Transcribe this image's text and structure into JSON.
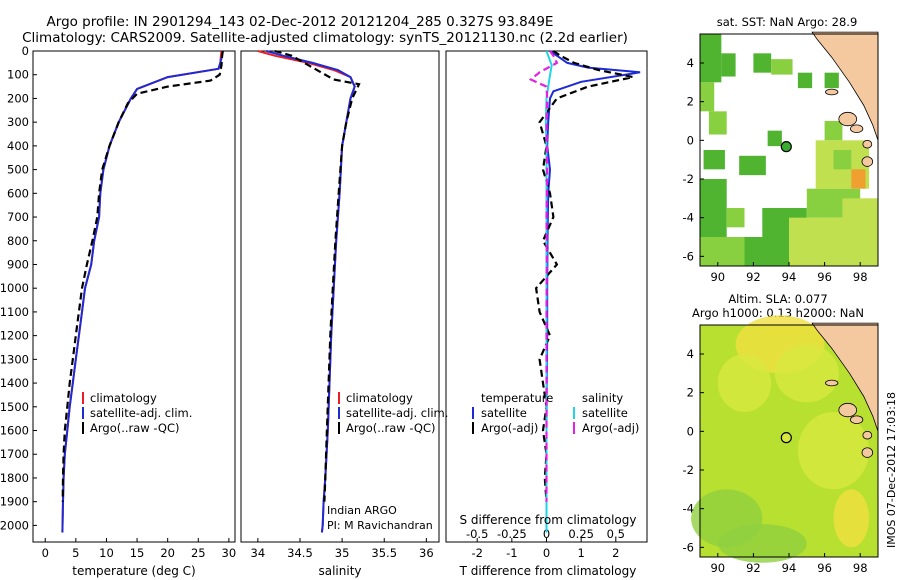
{
  "header": {
    "line1": "Argo profile: IN 2901294_143 02-Dec-2012 20121204_285 0.327S 93.849E",
    "line2": "Climatology: CARS2009. Satellite-adjusted climatology: synTS_20121130.nc (2.2d earlier)"
  },
  "colors": {
    "climatology": "#ee1c24",
    "satellite": "#1d2bd6",
    "argo": "#000000",
    "sal_satellite": "#1fd6e6",
    "sal_argo": "#e61ee6",
    "land": "#f5c9a0",
    "ocean_missing": "#ffffff"
  },
  "depth_axis": {
    "ticks": [
      0,
      100,
      200,
      300,
      400,
      500,
      600,
      700,
      800,
      900,
      1000,
      1100,
      1200,
      1300,
      1400,
      1500,
      1600,
      1700,
      1800,
      1900,
      2000
    ],
    "range": [
      0,
      2070
    ]
  },
  "legend_labels": {
    "climatology": "climatology",
    "satellite_adj": "satellite-adj. clim.",
    "argo": "Argo(..raw -QC)"
  },
  "chart_data": [
    {
      "type": "line",
      "title": "",
      "xlabel": "temperature (deg C)",
      "xlim": [
        -2,
        31
      ],
      "xticks": [
        0,
        5,
        10,
        15,
        20,
        25,
        30
      ],
      "ylim": [
        0,
        2070
      ],
      "series": [
        {
          "name": "climatology",
          "color": "#ee1c24",
          "dash": "none",
          "x": [
            28.8,
            28.7,
            28.6,
            28.3,
            20,
            15,
            14,
            12,
            10.5,
            9.5,
            9,
            8.8,
            8,
            7.5,
            6.5,
            6,
            5.5,
            5,
            4.5,
            4,
            3.6,
            3.2,
            3,
            2.9,
            2.8
          ],
          "y": [
            0,
            20,
            50,
            75,
            110,
            160,
            200,
            300,
            400,
            500,
            600,
            700,
            800,
            900,
            1000,
            1100,
            1200,
            1300,
            1400,
            1500,
            1600,
            1700,
            1800,
            1900,
            2030
          ]
        },
        {
          "name": "satellite-adj. clim.",
          "color": "#1d2bd6",
          "dash": "none",
          "x": [
            29,
            28.9,
            28.6,
            28.3,
            20,
            15,
            14,
            12,
            10.5,
            9.5,
            9,
            8.8,
            8,
            7.5,
            6.5,
            6,
            5.5,
            5,
            4.5,
            4,
            3.6,
            3.2,
            3,
            2.9,
            2.8
          ],
          "y": [
            0,
            20,
            50,
            75,
            110,
            160,
            200,
            300,
            400,
            500,
            600,
            700,
            800,
            900,
            1000,
            1100,
            1200,
            1300,
            1400,
            1500,
            1600,
            1700,
            1800,
            1900,
            2030
          ]
        },
        {
          "name": "Argo(..raw -QC)",
          "color": "#000000",
          "dash": "7,4",
          "x": [
            29,
            28.9,
            28.8,
            28.5,
            27,
            20,
            15,
            13.5,
            12,
            10.5,
            9.3,
            8.8,
            8.5,
            7.7,
            6.8,
            6,
            5.5,
            5,
            4.5,
            4,
            3.6,
            3.2,
            3,
            2.9,
            2.85
          ],
          "y": [
            0,
            20,
            60,
            100,
            125,
            150,
            180,
            220,
            300,
            400,
            500,
            600,
            700,
            800,
            900,
            1000,
            1100,
            1200,
            1300,
            1400,
            1500,
            1600,
            1700,
            1800,
            1900
          ]
        }
      ],
      "legend": {
        "location": "lower-center",
        "entries": [
          "climatology",
          "satellite-adj. clim.",
          "Argo(..raw -QC)"
        ]
      }
    },
    {
      "type": "line",
      "title": "",
      "xlabel": "salinity",
      "xlim": [
        33.8,
        36.15
      ],
      "xticks": [
        34,
        34.5,
        35,
        35.5,
        36
      ],
      "ylim": [
        0,
        2070
      ],
      "annotation": [
        "Indian ARGO",
        "PI: M Ravichandran"
      ],
      "series": [
        {
          "name": "climatology",
          "color": "#ee1c24",
          "dash": "none",
          "x": [
            34.0,
            34.2,
            34.6,
            34.9,
            35.1,
            35.15,
            35.1,
            35.05,
            35.0,
            34.97,
            34.93,
            34.9,
            34.87,
            34.85,
            34.83,
            34.8,
            34.78,
            34.77,
            34.76
          ],
          "y": [
            0,
            20,
            50,
            80,
            110,
            150,
            200,
            300,
            400,
            600,
            800,
            1000,
            1200,
            1400,
            1600,
            1800,
            1900,
            2000,
            2030
          ]
        },
        {
          "name": "satellite-adj. clim.",
          "color": "#1d2bd6",
          "dash": "none",
          "x": [
            34.1,
            34.3,
            34.65,
            34.95,
            35.1,
            35.15,
            35.1,
            35.05,
            35.0,
            34.97,
            34.93,
            34.9,
            34.87,
            34.85,
            34.83,
            34.8,
            34.78,
            34.77,
            34.76
          ],
          "y": [
            0,
            20,
            50,
            80,
            110,
            150,
            200,
            300,
            400,
            600,
            800,
            1000,
            1200,
            1400,
            1600,
            1800,
            1900,
            2000,
            2030
          ]
        },
        {
          "name": "Argo(..raw -QC)",
          "color": "#000000",
          "dash": "7,4",
          "x": [
            34.2,
            34.4,
            34.6,
            34.9,
            35.2,
            35.12,
            35.05,
            35.0,
            34.96,
            34.92,
            34.89,
            34.86,
            34.84,
            34.82,
            34.8,
            34.79
          ],
          "y": [
            0,
            20,
            60,
            120,
            140,
            200,
            300,
            400,
            600,
            800,
            1000,
            1200,
            1400,
            1600,
            1800,
            1900
          ]
        }
      ],
      "legend": {
        "location": "lower-center",
        "entries": [
          "climatology",
          "satellite-adj. clim.",
          "Argo(..raw -QC)"
        ]
      }
    },
    {
      "type": "line",
      "title": "",
      "xlabel": "T difference from climatology",
      "xlabel_top": "S difference from climatology",
      "xlim": [
        -2.9,
        2.9
      ],
      "xticks": [
        -2,
        -1,
        0,
        1,
        2
      ],
      "xticks_top": [
        -0.5,
        -0.25,
        0,
        0.25,
        0.5
      ],
      "xtick_labels_top": [
        "-0.5",
        "-0.25",
        "0",
        "0.25",
        "0.5"
      ],
      "ylim": [
        0,
        2070
      ],
      "series": [
        {
          "name": "temperature satellite",
          "color": "#1d2bd6",
          "dash": "none",
          "x": [
            0.1,
            0.3,
            0.6,
            1.2,
            2.7,
            1.0,
            0.2,
            0.1,
            0.05,
            0.02,
            0.1,
            0.05,
            0.03,
            0.02,
            0.02,
            0.01,
            0.0,
            0.0,
            0.0,
            0.0
          ],
          "y": [
            0,
            20,
            50,
            70,
            90,
            130,
            170,
            200,
            300,
            400,
            500,
            600,
            800,
            1000,
            1200,
            1400,
            1600,
            1800,
            1900,
            2030
          ]
        },
        {
          "name": "temperature Argo(-adj)",
          "color": "#000000",
          "dash": "7,4",
          "x": [
            0.2,
            0.4,
            0.8,
            1.5,
            2.5,
            1.2,
            0.3,
            -0.2,
            0.0,
            -0.1,
            0.1,
            0.2,
            -0.1,
            0.3,
            -0.3,
            -0.2,
            0.1,
            -0.2,
            -0.1,
            0.0,
            -0.1,
            0.0,
            -0.05,
            0.0
          ],
          "y": [
            0,
            20,
            50,
            80,
            110,
            150,
            200,
            300,
            400,
            500,
            600,
            700,
            800,
            900,
            1000,
            1100,
            1200,
            1300,
            1400,
            1500,
            1600,
            1700,
            1800,
            1900
          ]
        },
        {
          "name": "salinity satellite",
          "color": "#1fd6e6",
          "dash": "none",
          "x": [
            0.0,
            0.05,
            0.15,
            0.08,
            0.0,
            -0.02,
            0.0,
            0.0,
            0.0,
            0.0,
            0.0,
            0.0,
            0.0,
            0.0,
            0.0,
            0.0,
            0.0,
            0.0,
            0.0
          ],
          "y": [
            0,
            20,
            60,
            120,
            200,
            300,
            400,
            500,
            600,
            800,
            1000,
            1200,
            1400,
            1600,
            1700,
            1800,
            1900,
            2000,
            2030
          ]
        },
        {
          "name": "salinity Argo(-adj)",
          "color": "#e61ee6",
          "dash": "7,4",
          "x": [
            0.1,
            0.2,
            0.3,
            -0.2,
            -0.45,
            0.0,
            0.02,
            0.0,
            0.02,
            0.0,
            0.01,
            0.0,
            0.0,
            0.0,
            0.0,
            0.0
          ],
          "y": [
            0,
            20,
            50,
            90,
            120,
            150,
            200,
            300,
            500,
            700,
            900,
            1100,
            1300,
            1500,
            1700,
            1900
          ]
        }
      ],
      "legend_headers": [
        "temperature",
        "salinity"
      ],
      "legend_items": [
        "satellite",
        "Argo(-adj)",
        "satellite",
        "Argo(-adj)"
      ]
    }
  ],
  "maps": [
    {
      "title": "sat. SST: NaN Argo: 28.9",
      "xticks": [
        "90",
        "92",
        "94",
        "96",
        "98"
      ],
      "yticks": [
        "4",
        "2",
        "0",
        "-2",
        "-4",
        "-6"
      ],
      "marker": {
        "lon": 93.849,
        "lat": -0.327
      },
      "colors": {
        "high": "#50b430",
        "mid": "#88d040",
        "low": "#c0e050",
        "hot": "#f0a030"
      }
    },
    {
      "title_line1": "Altim. SLA: 0.077",
      "title_line2": "Argo h1000: 0.13 h2000: NaN",
      "xticks": [
        "90",
        "92",
        "94",
        "96",
        "98"
      ],
      "yticks": [
        "4",
        "2",
        "0",
        "-2",
        "-4",
        "-6"
      ],
      "marker": {
        "lon": 93.849,
        "lat": -0.327
      },
      "colors": {
        "base": "#b8e030",
        "light": "#d8e840",
        "green": "#90d040",
        "yellow": "#f0e040"
      }
    }
  ],
  "footer": {
    "credit": "IMOS 07-Dec-2012 17:03:18"
  }
}
